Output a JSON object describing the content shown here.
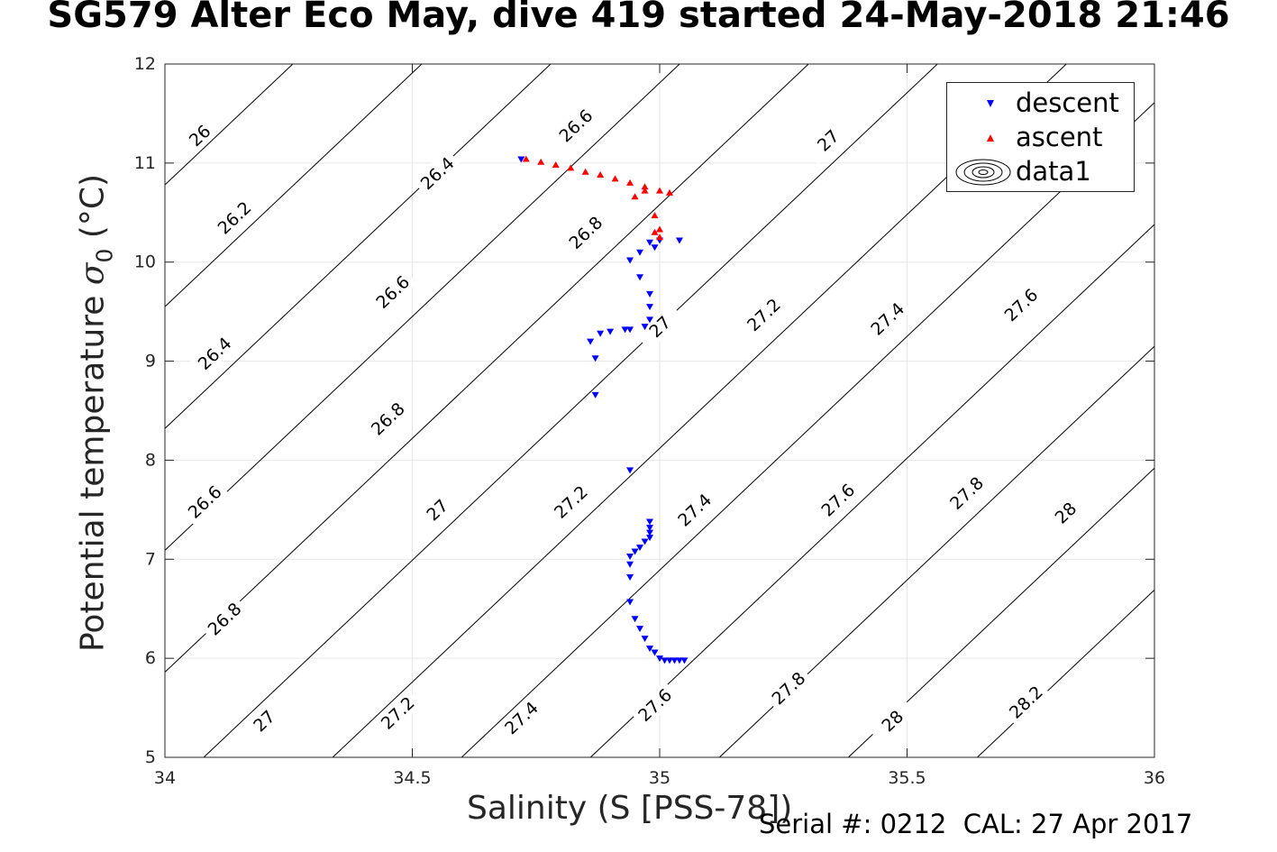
{
  "title": "SG579 Alter Eco May, dive 419 started 24-May-2018 21:46",
  "footer": "Serial #: 0212  CAL: 27 Apr 2017",
  "colors": {
    "descent": "#0000ff",
    "ascent": "#ff0000",
    "contour": "#000000",
    "grid": "#e6e6e6"
  },
  "chart_data": {
    "type": "scatter",
    "xlabel": "Salinity (S [PSS-78])",
    "ylabel": {
      "text": "Potential temperature ",
      "symbol": "σ",
      "subscript": "0",
      "unit": " (°C)"
    },
    "xlim": [
      34,
      36
    ],
    "ylim": [
      5,
      12
    ],
    "xticks": [
      "34",
      "34.5",
      "35",
      "35.5",
      "36"
    ],
    "yticks": [
      "5",
      "6",
      "7",
      "8",
      "9",
      "10",
      "11",
      "12"
    ],
    "grid": true,
    "legend": {
      "position": "top-right",
      "entries": [
        "descent",
        "ascent",
        "data1"
      ]
    },
    "contours": {
      "levels": [
        26,
        26.2,
        26.4,
        26.6,
        26.8,
        27,
        27.2,
        27.4,
        27.6,
        27.8,
        28,
        28.2
      ],
      "labels": [
        {
          "text": "26",
          "s": 34.07,
          "t": 11.28
        },
        {
          "text": "26.2",
          "s": 34.14,
          "t": 10.45
        },
        {
          "text": "26.4",
          "s": 34.55,
          "t": 10.9
        },
        {
          "text": "26.6",
          "s": 34.83,
          "t": 11.38
        },
        {
          "text": "27",
          "s": 35.34,
          "t": 11.23
        },
        {
          "text": "26.4",
          "s": 34.1,
          "t": 9.08
        },
        {
          "text": "26.6",
          "s": 34.46,
          "t": 9.7
        },
        {
          "text": "26.8",
          "s": 34.85,
          "t": 10.3
        },
        {
          "text": "27",
          "s": 35.0,
          "t": 9.35
        },
        {
          "text": "27.2",
          "s": 35.21,
          "t": 9.47
        },
        {
          "text": "27.4",
          "s": 35.46,
          "t": 9.43
        },
        {
          "text": "27.6",
          "s": 35.73,
          "t": 9.57
        },
        {
          "text": "26.8",
          "s": 34.45,
          "t": 8.42
        },
        {
          "text": "26.6",
          "s": 34.08,
          "t": 7.58
        },
        {
          "text": "27",
          "s": 34.55,
          "t": 7.5
        },
        {
          "text": "27.2",
          "s": 34.82,
          "t": 7.58
        },
        {
          "text": "27.4",
          "s": 35.07,
          "t": 7.5
        },
        {
          "text": "27.6",
          "s": 35.36,
          "t": 7.6
        },
        {
          "text": "27.8",
          "s": 35.62,
          "t": 7.67
        },
        {
          "text": "28",
          "s": 35.82,
          "t": 7.47
        },
        {
          "text": "26.8",
          "s": 34.12,
          "t": 6.4
        },
        {
          "text": "27",
          "s": 34.2,
          "t": 5.37
        },
        {
          "text": "27.2",
          "s": 34.47,
          "t": 5.45
        },
        {
          "text": "27.4",
          "s": 34.72,
          "t": 5.4
        },
        {
          "text": "27.6",
          "s": 34.99,
          "t": 5.53
        },
        {
          "text": "27.8",
          "s": 35.26,
          "t": 5.7
        },
        {
          "text": "28",
          "s": 35.47,
          "t": 5.37
        },
        {
          "text": "28.2",
          "s": 35.74,
          "t": 5.56
        }
      ]
    },
    "series": [
      {
        "name": "descent",
        "marker": "triangle-down",
        "points": [
          [
            34.72,
            11.04
          ],
          [
            34.98,
            10.2
          ],
          [
            35.0,
            10.22
          ],
          [
            35.04,
            10.22
          ],
          [
            34.99,
            10.15
          ],
          [
            34.94,
            10.02
          ],
          [
            34.96,
            10.1
          ],
          [
            34.96,
            9.85
          ],
          [
            34.98,
            9.68
          ],
          [
            34.98,
            9.55
          ],
          [
            34.98,
            9.42
          ],
          [
            34.97,
            9.35
          ],
          [
            34.94,
            9.32
          ],
          [
            34.93,
            9.32
          ],
          [
            34.9,
            9.3
          ],
          [
            34.88,
            9.28
          ],
          [
            34.86,
            9.2
          ],
          [
            34.87,
            9.03
          ],
          [
            34.87,
            8.66
          ],
          [
            34.94,
            7.9
          ],
          [
            34.98,
            7.38
          ],
          [
            34.98,
            7.32
          ],
          [
            34.98,
            7.27
          ],
          [
            34.98,
            7.22
          ],
          [
            34.97,
            7.18
          ],
          [
            34.96,
            7.12
          ],
          [
            34.95,
            7.08
          ],
          [
            34.94,
            7.03
          ],
          [
            34.94,
            6.95
          ],
          [
            34.94,
            6.82
          ],
          [
            34.94,
            6.57
          ],
          [
            34.95,
            6.4
          ],
          [
            34.96,
            6.3
          ],
          [
            34.97,
            6.2
          ],
          [
            34.98,
            6.1
          ],
          [
            34.99,
            6.06
          ],
          [
            35.0,
            6.0
          ],
          [
            35.01,
            5.98
          ],
          [
            35.02,
            5.98
          ],
          [
            35.03,
            5.98
          ],
          [
            35.04,
            5.98
          ],
          [
            35.05,
            5.98
          ]
        ]
      },
      {
        "name": "ascent",
        "marker": "triangle-up",
        "points": [
          [
            34.73,
            11.04
          ],
          [
            34.76,
            11.01
          ],
          [
            34.79,
            10.98
          ],
          [
            34.82,
            10.95
          ],
          [
            34.85,
            10.91
          ],
          [
            34.88,
            10.88
          ],
          [
            34.91,
            10.84
          ],
          [
            34.94,
            10.8
          ],
          [
            34.97,
            10.76
          ],
          [
            35.0,
            10.72
          ],
          [
            35.02,
            10.7
          ],
          [
            34.95,
            10.66
          ],
          [
            34.97,
            10.72
          ],
          [
            34.99,
            10.47
          ],
          [
            35.0,
            10.33
          ],
          [
            35.0,
            10.25
          ],
          [
            34.99,
            10.3
          ]
        ]
      }
    ]
  }
}
